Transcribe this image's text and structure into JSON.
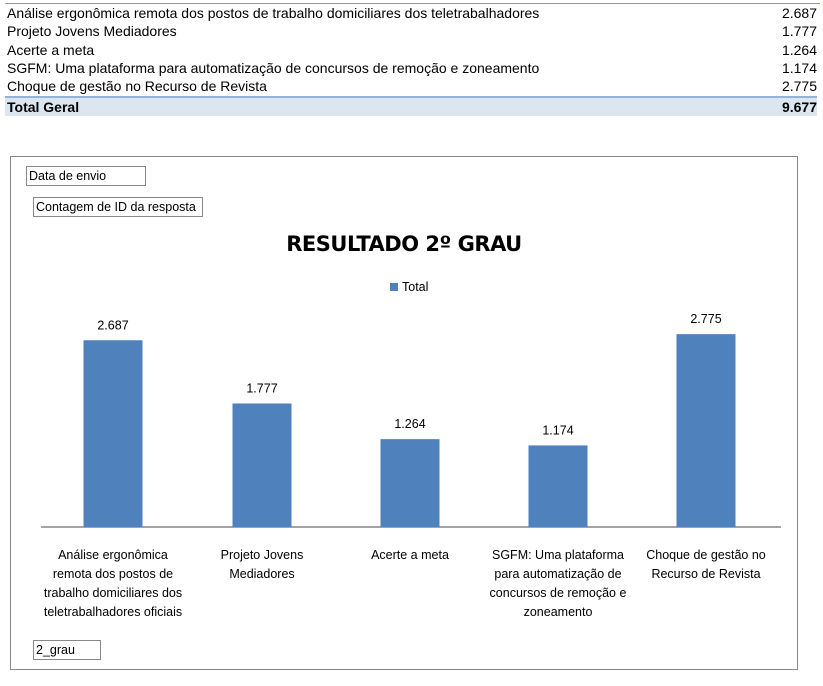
{
  "table": {
    "rows": [
      {
        "label": "Análise ergonômica remota dos postos de trabalho domiciliares dos teletrabalhadores",
        "value": "2.687"
      },
      {
        "label": "Projeto Jovens Mediadores",
        "value": "1.777"
      },
      {
        "label": "Acerte a meta",
        "value": "1.264"
      },
      {
        "label": "SGFM: Uma plataforma para automatização de concursos de remoção e zoneamento",
        "value": "1.174"
      },
      {
        "label": "Choque de gestão no Recurso de Revista",
        "value": "2.775"
      }
    ],
    "total": {
      "label": "Total Geral",
      "value": "9.677"
    }
  },
  "pivot_fields": {
    "filter": "Data de envio",
    "values": "Contagem de ID da resposta",
    "axis": "2_grau"
  },
  "chart_data": {
    "type": "bar",
    "title": "RESULTADO 2º GRAU",
    "legend": "top",
    "grid": false,
    "color": "#4f81bd",
    "categories": [
      "Análise ergonômica remota dos postos de trabalho domiciliares dos teletrabalhadores oficiais",
      "Projeto Jovens Mediadores",
      "Acerte a meta",
      "SGFM: Uma plataforma para automatização de concursos de remoção e zoneamento",
      "Choque de gestão no Recurso de Revista"
    ],
    "series": [
      {
        "name": "Total",
        "values": [
          2.687,
          1.777,
          1.264,
          1.174,
          2.775
        ]
      }
    ],
    "data_labels": [
      "2.687",
      "1.777",
      "1.264",
      "1.174",
      "2.775"
    ]
  }
}
